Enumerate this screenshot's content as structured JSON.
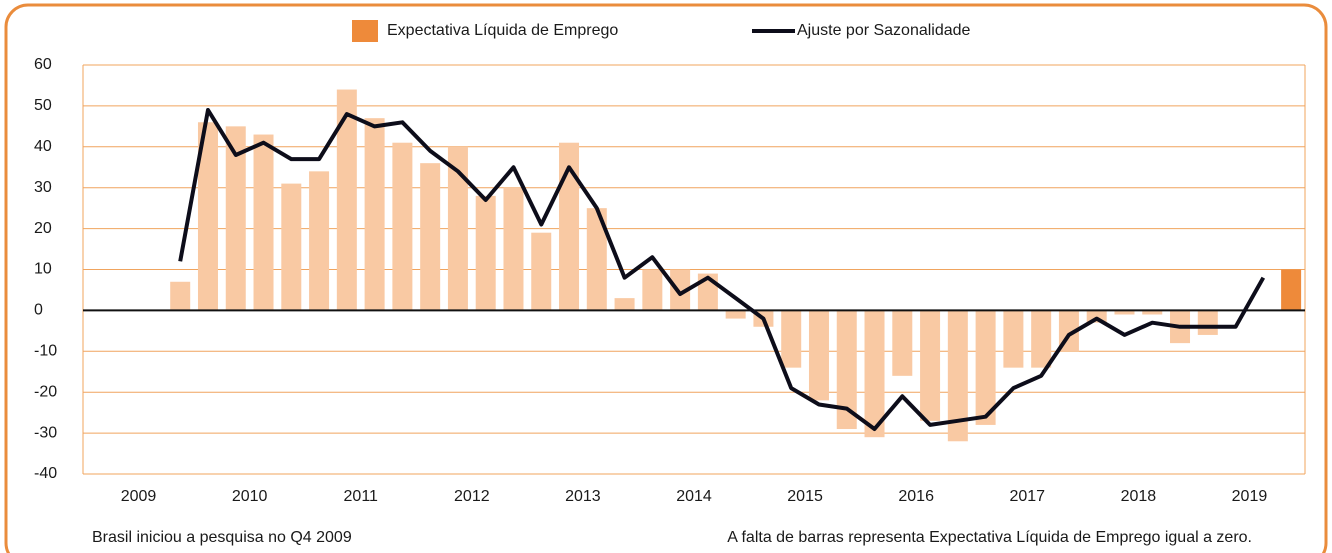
{
  "chart_data": {
    "type": "bar_line",
    "legend_position": "top",
    "categories": [
      null,
      null,
      null,
      null,
      null,
      null,
      null,
      null,
      null,
      null,
      null,
      null,
      null,
      null,
      null,
      null,
      null,
      null,
      null,
      null,
      null,
      null,
      null,
      null,
      null,
      null,
      null,
      null,
      null,
      null,
      null,
      null,
      null,
      null,
      null,
      null,
      null,
      null,
      null,
      null,
      null,
      null,
      null,
      null
    ],
    "year_labels": [
      "2009",
      "2010",
      "2011",
      "2012",
      "2013",
      "2014",
      "2015",
      "2016",
      "2017",
      "2018",
      "2019"
    ],
    "series": [
      {
        "name": "Expectativa Líquida de Emprego",
        "color": "#ee8a3a",
        "bar_fill": "#f9c9a3",
        "highlight_index": 43,
        "values": [
          null,
          null,
          null,
          7,
          46,
          45,
          43,
          31,
          34,
          54,
          47,
          41,
          36,
          40,
          28,
          30,
          19,
          41,
          25,
          3,
          10,
          10,
          9,
          -2,
          -4,
          -14,
          -22,
          -29,
          -31,
          -16,
          -27,
          -32,
          -28,
          -14,
          -14,
          -10,
          -3,
          -1,
          -1,
          -8,
          -6,
          0,
          0,
          10
        ]
      },
      {
        "name": "Ajuste por Sazonalidade",
        "color": "#0d0d1a",
        "values": [
          null,
          null,
          null,
          12,
          49,
          38,
          41,
          37,
          37,
          48,
          45,
          46,
          39,
          34,
          27,
          35,
          21,
          35,
          25,
          8,
          13,
          4,
          8,
          3,
          -2,
          -19,
          -23,
          -24,
          -29,
          -21,
          -28,
          -27,
          -26,
          -19,
          -16,
          -6,
          -2,
          -6,
          -3,
          -4,
          -4,
          -4,
          8,
          null
        ]
      }
    ],
    "ylim": [
      -40,
      60
    ],
    "yticks": [
      -40,
      -30,
      -20,
      -10,
      0,
      10,
      20,
      30,
      40,
      50,
      60
    ],
    "grid": true,
    "grid_color": "#f0a45e",
    "notes": [
      "Brasil iniciou a pesquisa no Q4 2009",
      "A falta de barras representa Expectativa Líquida de Emprego igual a zero."
    ]
  }
}
